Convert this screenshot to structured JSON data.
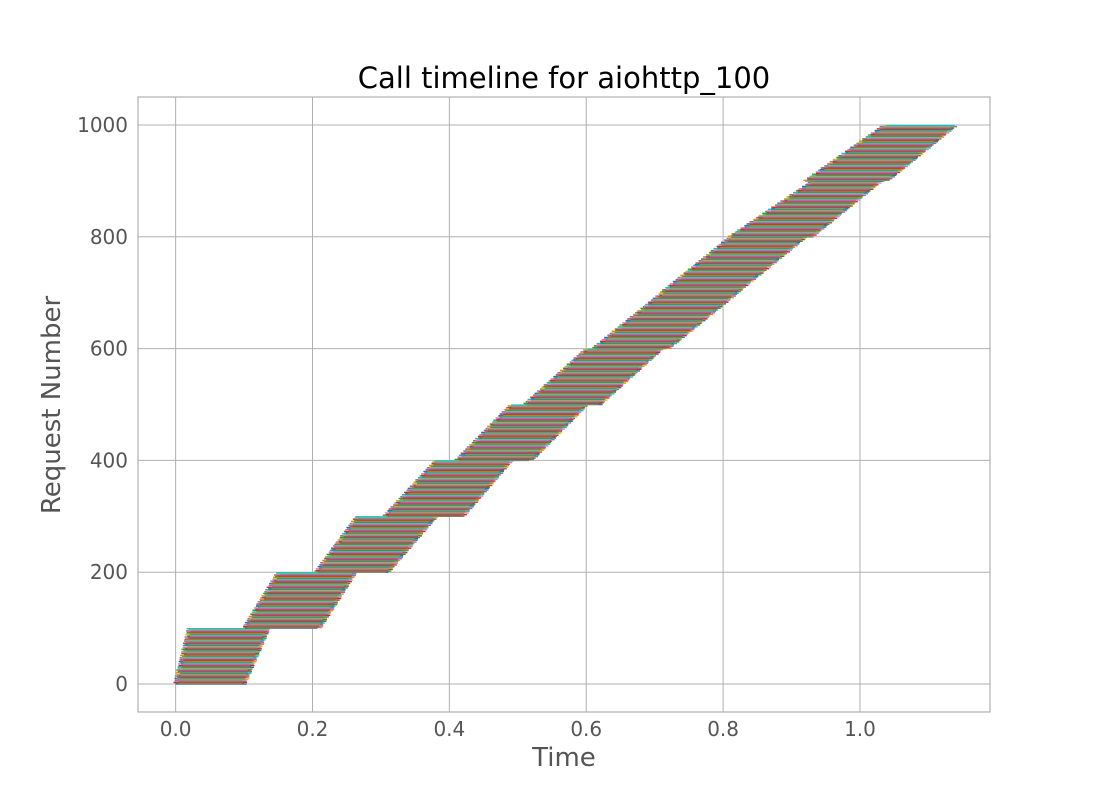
{
  "chart_data": {
    "type": "timeline",
    "title": "Call timeline for aiohttp_100",
    "xlabel": "Time",
    "ylabel": "Request Number",
    "xlim": [
      -0.055,
      1.19
    ],
    "ylim": [
      -50,
      1050
    ],
    "xticks": [
      0.0,
      0.2,
      0.4,
      0.6,
      0.8,
      1.0
    ],
    "xtick_labels": [
      "0.0",
      "0.2",
      "0.4",
      "0.6",
      "0.8",
      "1.0"
    ],
    "yticks": [
      0,
      200,
      400,
      600,
      800,
      1000
    ],
    "ytick_labels": [
      "0",
      "200",
      "400",
      "600",
      "800",
      "1000"
    ],
    "grid": true,
    "total_requests": 1000,
    "concurrency": 100,
    "series_colors": [
      "#1f77b4",
      "#ff7f0e",
      "#2ca02c",
      "#d62728",
      "#9467bd",
      "#8c564b",
      "#e377c2",
      "#7f7f7f",
      "#bcbd22",
      "#17becf"
    ],
    "batches": [
      {
        "requests": [
          0,
          99
        ],
        "start_begin": 0.0,
        "start_end": 0.02,
        "end_begin": 0.1,
        "end_end": 0.135
      },
      {
        "requests": [
          100,
          199
        ],
        "start_begin": 0.1,
        "start_end": 0.15,
        "end_begin": 0.21,
        "end_end": 0.262
      },
      {
        "requests": [
          200,
          299
        ],
        "start_begin": 0.205,
        "start_end": 0.265,
        "end_begin": 0.31,
        "end_end": 0.38
      },
      {
        "requests": [
          300,
          399
        ],
        "start_begin": 0.305,
        "start_end": 0.38,
        "end_begin": 0.42,
        "end_end": 0.49
      },
      {
        "requests": [
          400,
          499
        ],
        "start_begin": 0.41,
        "start_end": 0.49,
        "end_begin": 0.52,
        "end_end": 0.6
      },
      {
        "requests": [
          500,
          599
        ],
        "start_begin": 0.51,
        "start_end": 0.6,
        "end_begin": 0.62,
        "end_end": 0.71
      },
      {
        "requests": [
          600,
          699
        ],
        "start_begin": 0.61,
        "start_end": 0.71,
        "end_begin": 0.72,
        "end_end": 0.82
      },
      {
        "requests": [
          700,
          799
        ],
        "start_begin": 0.71,
        "start_end": 0.81,
        "end_begin": 0.82,
        "end_end": 0.92
      },
      {
        "requests": [
          800,
          899
        ],
        "start_begin": 0.81,
        "start_end": 0.93,
        "end_begin": 0.93,
        "end_end": 1.03
      },
      {
        "requests": [
          900,
          999
        ],
        "start_begin": 0.92,
        "start_end": 1.035,
        "end_begin": 1.04,
        "end_end": 1.14
      }
    ]
  }
}
